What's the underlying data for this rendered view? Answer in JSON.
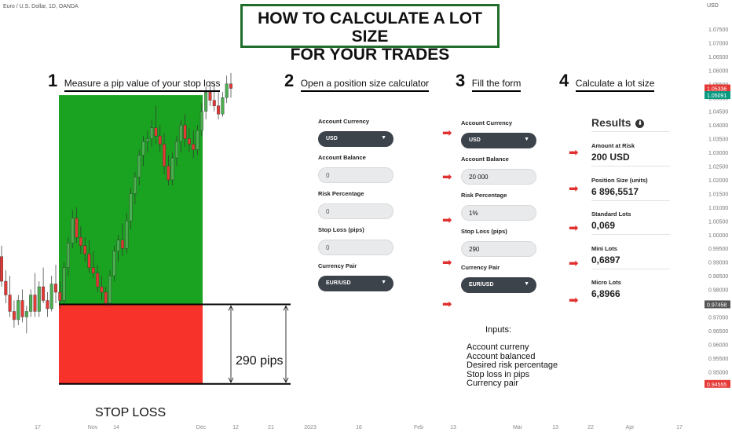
{
  "header": {
    "symbol_label": "Euro / U.S. Dollar, 1D, OANDA"
  },
  "title": {
    "line1": "HOW TO CALCULATE A LOT SIZE",
    "line2": "FOR YOUR TRADES"
  },
  "steps": [
    {
      "num": "1",
      "text": "Measure a pip value of your stop loss"
    },
    {
      "num": "2",
      "text": "Open a position size calculator"
    },
    {
      "num": "3",
      "text": "Fill the form"
    },
    {
      "num": "4",
      "text": "Calculate a lot size"
    }
  ],
  "form_empty": {
    "account_currency_label": "Account Currency",
    "account_currency_value": "USD",
    "account_balance_label": "Account Balance",
    "account_balance_value": "0",
    "risk_label": "Risk Percentage",
    "risk_value": "0",
    "stop_loss_label": "Stop Loss (pips)",
    "stop_loss_value": "0",
    "pair_label": "Currency Pair",
    "pair_value": "EUR/USD"
  },
  "form_filled": {
    "account_currency_label": "Account Currency",
    "account_currency_value": "USD",
    "account_balance_label": "Account Balance",
    "account_balance_value": "20 000",
    "risk_label": "Risk Percentage",
    "risk_value": "1%",
    "stop_loss_label": "Stop Loss (pips)",
    "stop_loss_value": "290",
    "pair_label": "Currency Pair",
    "pair_value": "EUR/USD"
  },
  "results": {
    "title": "Results",
    "items": [
      {
        "label": "Amount at Risk",
        "value": "200 USD"
      },
      {
        "label": "Position Size (units)",
        "value": "6 896,5517"
      },
      {
        "label": "Standard Lots",
        "value": "0,069"
      },
      {
        "label": "Mini Lots",
        "value": "0,6897"
      },
      {
        "label": "Micro Lots",
        "value": "6,8966"
      }
    ]
  },
  "inputs_note": {
    "heading": "Inputs:",
    "lines": [
      "Account curreny",
      "Account balanced",
      "Desired risk percentage",
      "Stop loss in pips",
      "Currency pair"
    ]
  },
  "zone": {
    "pips_label": "290 pips",
    "stop_label": "STOP LOSS"
  },
  "colors": {
    "profit_zone": "#1aa321",
    "loss_zone": "#f7322a",
    "up_candle": "#4caf50",
    "down_candle": "#e53935",
    "price_tag": "#e53935",
    "current_tag": "#089981"
  },
  "chart_data": {
    "type": "candlestick",
    "y_axis_title": "USD",
    "y_ticks": [
      "1.07500",
      "1.07000",
      "1.06500",
      "1.06000",
      "1.05500",
      "1.05000",
      "1.04500",
      "1.04000",
      "1.03500",
      "1.03000",
      "1.02500",
      "1.02000",
      "1.01500",
      "1.01000",
      "1.00500",
      "1.00000",
      "0.99500",
      "0.99000",
      "0.98500",
      "0.98000",
      "0.97500",
      "0.97000",
      "0.96500",
      "0.96000",
      "0.95500",
      "0.95000"
    ],
    "ylim": [
      0.9445,
      1.0795
    ],
    "x_ticks": [
      "17",
      "Nov",
      "14",
      "Dec",
      "12",
      "21",
      "2023",
      "16",
      "Feb",
      "13",
      "Mar",
      "13",
      "22",
      "Apr",
      "17"
    ],
    "price_tags": [
      {
        "value": 1.05336,
        "label": "1.05336",
        "color": "#e53935"
      },
      {
        "value": 1.05091,
        "label": "1.05091",
        "color": "#089981"
      },
      {
        "value": 0.97458,
        "label": "0.97458",
        "color": "#555555"
      },
      {
        "value": 0.94555,
        "label": "0.94555",
        "color": "#e53935"
      }
    ],
    "profit_zone": {
      "top": 1.05091,
      "bottom": 0.97458
    },
    "loss_zone": {
      "top": 0.97458,
      "bottom": 0.94555
    },
    "candles": [
      {
        "o": 0.992,
        "h": 0.996,
        "l": 0.981,
        "c": 0.983
      },
      {
        "o": 0.983,
        "h": 0.987,
        "l": 0.975,
        "c": 0.978
      },
      {
        "o": 0.978,
        "h": 0.985,
        "l": 0.97,
        "c": 0.972
      },
      {
        "o": 0.972,
        "h": 0.976,
        "l": 0.966,
        "c": 0.969
      },
      {
        "o": 0.969,
        "h": 0.978,
        "l": 0.967,
        "c": 0.976
      },
      {
        "o": 0.976,
        "h": 0.98,
        "l": 0.968,
        "c": 0.97
      },
      {
        "o": 0.97,
        "h": 0.974,
        "l": 0.964,
        "c": 0.972
      },
      {
        "o": 0.972,
        "h": 0.98,
        "l": 0.97,
        "c": 0.978
      },
      {
        "o": 0.978,
        "h": 0.986,
        "l": 0.97,
        "c": 0.972
      },
      {
        "o": 0.972,
        "h": 0.983,
        "l": 0.97,
        "c": 0.981
      },
      {
        "o": 0.981,
        "h": 0.988,
        "l": 0.975,
        "c": 0.976
      },
      {
        "o": 0.976,
        "h": 0.979,
        "l": 0.97,
        "c": 0.973
      },
      {
        "o": 0.973,
        "h": 0.985,
        "l": 0.972,
        "c": 0.982
      },
      {
        "o": 0.982,
        "h": 0.989,
        "l": 0.975,
        "c": 0.979
      },
      {
        "o": 0.979,
        "h": 0.983,
        "l": 0.973,
        "c": 0.976
      },
      {
        "o": 0.976,
        "h": 0.99,
        "l": 0.975,
        "c": 0.988
      },
      {
        "o": 0.988,
        "h": 0.999,
        "l": 0.985,
        "c": 0.997
      },
      {
        "o": 0.997,
        "h": 1.009,
        "l": 0.995,
        "c": 1.006
      },
      {
        "o": 1.006,
        "h": 1.01,
        "l": 0.997,
        "c": 0.999
      },
      {
        "o": 0.999,
        "h": 1.003,
        "l": 0.993,
        "c": 0.996
      },
      {
        "o": 0.996,
        "h": 0.999,
        "l": 0.99,
        "c": 0.993
      },
      {
        "o": 0.993,
        "h": 0.998,
        "l": 0.986,
        "c": 0.988
      },
      {
        "o": 0.988,
        "h": 0.994,
        "l": 0.984,
        "c": 0.986
      },
      {
        "o": 0.986,
        "h": 0.989,
        "l": 0.979,
        "c": 0.981
      },
      {
        "o": 0.981,
        "h": 0.985,
        "l": 0.976,
        "c": 0.979
      },
      {
        "o": 0.979,
        "h": 0.981,
        "l": 0.974,
        "c": 0.975
      },
      {
        "o": 0.975,
        "h": 0.987,
        "l": 0.974,
        "c": 0.985
      },
      {
        "o": 0.985,
        "h": 0.996,
        "l": 0.983,
        "c": 0.994
      },
      {
        "o": 0.994,
        "h": 1.0,
        "l": 0.99,
        "c": 0.998
      },
      {
        "o": 0.998,
        "h": 1.004,
        "l": 0.992,
        "c": 0.995
      },
      {
        "o": 0.995,
        "h": 1.008,
        "l": 0.993,
        "c": 1.005
      },
      {
        "o": 1.005,
        "h": 1.017,
        "l": 1.002,
        "c": 1.015
      },
      {
        "o": 1.015,
        "h": 1.023,
        "l": 1.011,
        "c": 1.021
      },
      {
        "o": 1.021,
        "h": 1.031,
        "l": 1.018,
        "c": 1.029
      },
      {
        "o": 1.029,
        "h": 1.036,
        "l": 1.025,
        "c": 1.034
      },
      {
        "o": 1.034,
        "h": 1.038,
        "l": 1.03,
        "c": 1.035
      },
      {
        "o": 1.035,
        "h": 1.042,
        "l": 1.032,
        "c": 1.039
      },
      {
        "o": 1.039,
        "h": 1.047,
        "l": 1.033,
        "c": 1.036
      },
      {
        "o": 1.036,
        "h": 1.04,
        "l": 1.03,
        "c": 1.033
      },
      {
        "o": 1.033,
        "h": 1.037,
        "l": 1.022,
        "c": 1.025
      },
      {
        "o": 1.025,
        "h": 1.029,
        "l": 1.018,
        "c": 1.02
      },
      {
        "o": 1.02,
        "h": 1.03,
        "l": 1.018,
        "c": 1.028
      },
      {
        "o": 1.028,
        "h": 1.036,
        "l": 1.025,
        "c": 1.034
      },
      {
        "o": 1.034,
        "h": 1.042,
        "l": 1.03,
        "c": 1.04
      },
      {
        "o": 1.04,
        "h": 1.044,
        "l": 1.032,
        "c": 1.035
      },
      {
        "o": 1.035,
        "h": 1.039,
        "l": 1.03,
        "c": 1.033
      },
      {
        "o": 1.033,
        "h": 1.038,
        "l": 1.028,
        "c": 1.031
      },
      {
        "o": 1.031,
        "h": 1.04,
        "l": 1.029,
        "c": 1.038
      },
      {
        "o": 1.038,
        "h": 1.048,
        "l": 1.036,
        "c": 1.045
      },
      {
        "o": 1.045,
        "h": 1.054,
        "l": 1.042,
        "c": 1.052
      },
      {
        "o": 1.052,
        "h": 1.056,
        "l": 1.047,
        "c": 1.049
      },
      {
        "o": 1.049,
        "h": 1.055,
        "l": 1.045,
        "c": 1.047
      },
      {
        "o": 1.047,
        "h": 1.052,
        "l": 1.042,
        "c": 1.044
      },
      {
        "o": 1.044,
        "h": 1.052,
        "l": 1.043,
        "c": 1.05
      },
      {
        "o": 1.05,
        "h": 1.058,
        "l": 1.048,
        "c": 1.055
      },
      {
        "o": 1.055,
        "h": 1.059,
        "l": 1.05,
        "c": 1.05336
      }
    ]
  }
}
